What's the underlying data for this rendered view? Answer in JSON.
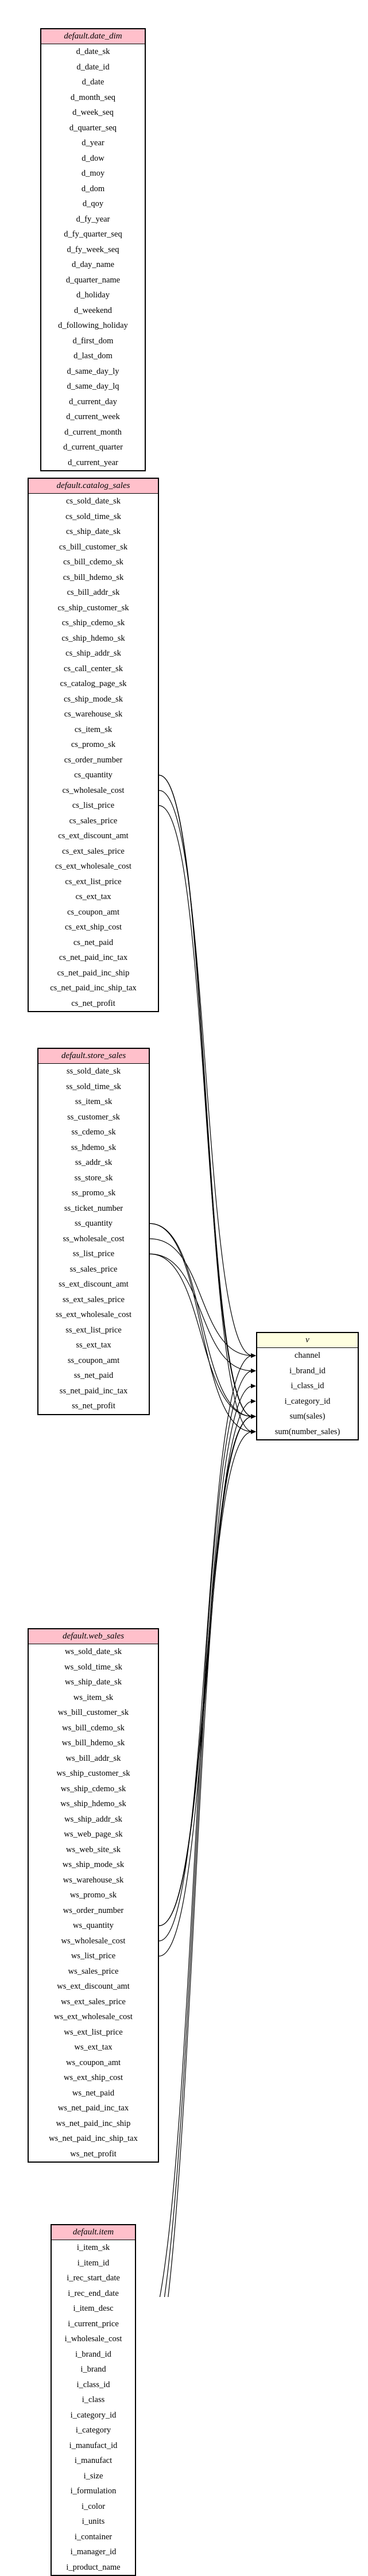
{
  "tables": [
    {
      "id": "date_dim",
      "title": "default.date_dim",
      "columns": [
        "d_date_sk",
        "d_date_id",
        "d_date",
        "d_month_seq",
        "d_week_seq",
        "d_quarter_seq",
        "d_year",
        "d_dow",
        "d_moy",
        "d_dom",
        "d_qoy",
        "d_fy_year",
        "d_fy_quarter_seq",
        "d_fy_week_seq",
        "d_day_name",
        "d_quarter_name",
        "d_holiday",
        "d_weekend",
        "d_following_holiday",
        "d_first_dom",
        "d_last_dom",
        "d_same_day_ly",
        "d_same_day_lq",
        "d_current_day",
        "d_current_week",
        "d_current_month",
        "d_current_quarter",
        "d_current_year"
      ]
    },
    {
      "id": "catalog_sales",
      "title": "default.catalog_sales",
      "columns": [
        "cs_sold_date_sk",
        "cs_sold_time_sk",
        "cs_ship_date_sk",
        "cs_bill_customer_sk",
        "cs_bill_cdemo_sk",
        "cs_bill_hdemo_sk",
        "cs_bill_addr_sk",
        "cs_ship_customer_sk",
        "cs_ship_cdemo_sk",
        "cs_ship_hdemo_sk",
        "cs_ship_addr_sk",
        "cs_call_center_sk",
        "cs_catalog_page_sk",
        "cs_ship_mode_sk",
        "cs_warehouse_sk",
        "cs_item_sk",
        "cs_promo_sk",
        "cs_order_number",
        "cs_quantity",
        "cs_wholesale_cost",
        "cs_list_price",
        "cs_sales_price",
        "cs_ext_discount_amt",
        "cs_ext_sales_price",
        "cs_ext_wholesale_cost",
        "cs_ext_list_price",
        "cs_ext_tax",
        "cs_coupon_amt",
        "cs_ext_ship_cost",
        "cs_net_paid",
        "cs_net_paid_inc_tax",
        "cs_net_paid_inc_ship",
        "cs_net_paid_inc_ship_tax",
        "cs_net_profit"
      ]
    },
    {
      "id": "store_sales",
      "title": "default.store_sales",
      "columns": [
        "ss_sold_date_sk",
        "ss_sold_time_sk",
        "ss_item_sk",
        "ss_customer_sk",
        "ss_cdemo_sk",
        "ss_hdemo_sk",
        "ss_addr_sk",
        "ss_store_sk",
        "ss_promo_sk",
        "ss_ticket_number",
        "ss_quantity",
        "ss_wholesale_cost",
        "ss_list_price",
        "ss_sales_price",
        "ss_ext_discount_amt",
        "ss_ext_sales_price",
        "ss_ext_wholesale_cost",
        "ss_ext_list_price",
        "ss_ext_tax",
        "ss_coupon_amt",
        "ss_net_paid",
        "ss_net_paid_inc_tax",
        "ss_net_profit"
      ]
    },
    {
      "id": "web_sales",
      "title": "default.web_sales",
      "columns": [
        "ws_sold_date_sk",
        "ws_sold_time_sk",
        "ws_ship_date_sk",
        "ws_item_sk",
        "ws_bill_customer_sk",
        "ws_bill_cdemo_sk",
        "ws_bill_hdemo_sk",
        "ws_bill_addr_sk",
        "ws_ship_customer_sk",
        "ws_ship_cdemo_sk",
        "ws_ship_hdemo_sk",
        "ws_ship_addr_sk",
        "ws_web_page_sk",
        "ws_web_site_sk",
        "ws_ship_mode_sk",
        "ws_warehouse_sk",
        "ws_promo_sk",
        "ws_order_number",
        "ws_quantity",
        "ws_wholesale_cost",
        "ws_list_price",
        "ws_sales_price",
        "ws_ext_discount_amt",
        "ws_ext_sales_price",
        "ws_ext_wholesale_cost",
        "ws_ext_list_price",
        "ws_ext_tax",
        "ws_coupon_amt",
        "ws_ext_ship_cost",
        "ws_net_paid",
        "ws_net_paid_inc_tax",
        "ws_net_paid_inc_ship",
        "ws_net_paid_inc_ship_tax",
        "ws_net_profit"
      ]
    },
    {
      "id": "item",
      "title": "default.item",
      "columns": [
        "i_item_sk",
        "i_item_id",
        "i_rec_start_date",
        "i_rec_end_date",
        "i_item_desc",
        "i_current_price",
        "i_wholesale_cost",
        "i_brand_id",
        "i_brand",
        "i_class_id",
        "i_class",
        "i_category_id",
        "i_category",
        "i_manufact_id",
        "i_manufact",
        "i_size",
        "i_formulation",
        "i_color",
        "i_units",
        "i_container",
        "i_manager_id",
        "i_product_name"
      ]
    }
  ],
  "result": {
    "id": "v",
    "title": "v",
    "columns": [
      "channel",
      "i_brand_id",
      "i_class_id",
      "i_category_id",
      "sum(sales)",
      "sum(number_sales)"
    ]
  },
  "edges": [
    {
      "from": "catalog_sales.cs_quantity",
      "to": "v.sum(number_sales)"
    },
    {
      "from": "catalog_sales.cs_quantity",
      "to": "v.sum(sales)"
    },
    {
      "from": "catalog_sales.cs_list_price",
      "to": "v.sum(sales)"
    },
    {
      "from": "catalog_sales.cs_wholesale_cost",
      "to": "v.channel"
    },
    {
      "from": "store_sales.ss_quantity",
      "to": "v.sum(number_sales)"
    },
    {
      "from": "store_sales.ss_quantity",
      "to": "v.sum(sales)"
    },
    {
      "from": "store_sales.ss_list_price",
      "to": "v.sum(sales)"
    },
    {
      "from": "store_sales.ss_list_price",
      "to": "v.i_brand_id"
    },
    {
      "from": "store_sales.ss_wholesale_cost",
      "to": "v.channel"
    },
    {
      "from": "web_sales.ws_quantity",
      "to": "v.sum(number_sales)"
    },
    {
      "from": "web_sales.ws_quantity",
      "to": "v.sum(sales)"
    },
    {
      "from": "web_sales.ws_list_price",
      "to": "v.sum(sales)"
    },
    {
      "from": "web_sales.ws_wholesale_cost",
      "to": "v.channel"
    },
    {
      "from": "item.i_brand_id",
      "to": "v.i_brand_id"
    },
    {
      "from": "item.i_class_id",
      "to": "v.i_class_id"
    },
    {
      "from": "item.i_category_id",
      "to": "v.i_category_id"
    }
  ]
}
